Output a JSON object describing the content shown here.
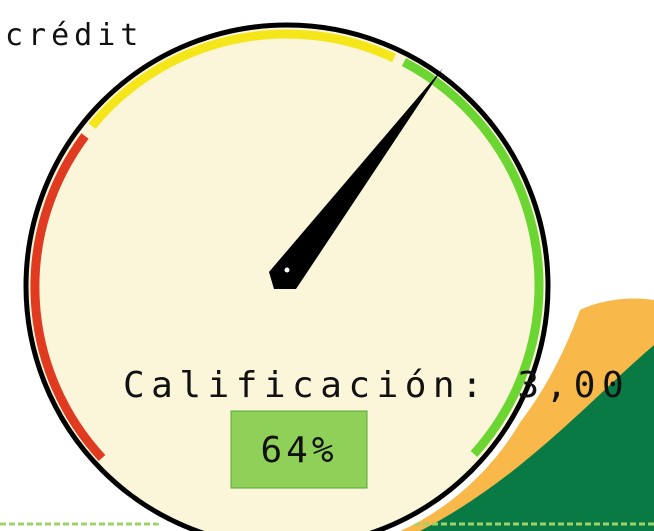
{
  "header": {
    "text": "crédit"
  },
  "gauge": {
    "label": "Calificación: 3,00",
    "percent": "64%"
  }
}
